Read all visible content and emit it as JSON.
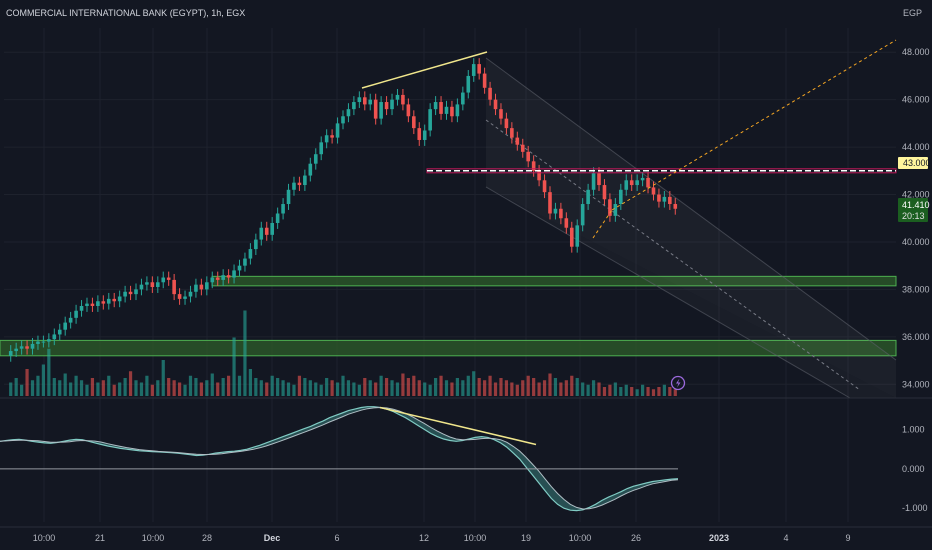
{
  "header": {
    "title": "COMMERCIAL INTERNATIONAL BANK (EGYPT), 1h, EGX",
    "currency": "EGP"
  },
  "colors": {
    "background": "#131722",
    "up": "#26a69a",
    "down": "#ef5350",
    "zone_fill": "#2e5e2a",
    "zone_border": "#4caf50",
    "trendline": "#f0e68c",
    "dashed_projection": "#f5a623",
    "price_badge": "#1b5e20",
    "level_badge_bg": "#fff59d",
    "grid": "#1e222d",
    "text": "#b2b5be"
  },
  "price_axis": {
    "ticks": [
      "48.000",
      "46.000",
      "44.000",
      "42.000",
      "40.000",
      "38.000",
      "36.000",
      "34.000"
    ],
    "current_price": "41.410",
    "countdown": "20:13",
    "marked_level": "43.000"
  },
  "oscillator_axis": {
    "ticks": [
      "1.000",
      "0.000",
      "-1.000"
    ]
  },
  "time_axis": {
    "labels": [
      "10:00",
      "21",
      "10:00",
      "28",
      "Dec",
      "6",
      "12",
      "10:00",
      "19",
      "10:00",
      "26",
      "2023",
      "4",
      "9"
    ]
  },
  "icons": {
    "flash": "lightning-icon"
  },
  "chart_data": {
    "type": "candlestick",
    "symbol": "COMMERCIAL INTERNATIONAL BANK (EGYPT)",
    "timeframe": "1h",
    "exchange": "EGX",
    "ylim": [
      33.8,
      48.6
    ],
    "grid": true,
    "closes": [
      35.4,
      35.5,
      35.6,
      35.5,
      35.7,
      35.8,
      35.8,
      35.9,
      36.1,
      36.3,
      36.6,
      36.8,
      37.1,
      37.3,
      37.4,
      37.3,
      37.5,
      37.4,
      37.6,
      37.5,
      37.7,
      37.9,
      37.8,
      38.0,
      38.2,
      38.3,
      38.1,
      38.3,
      38.5,
      38.4,
      37.8,
      37.6,
      37.7,
      37.9,
      38.2,
      38.0,
      38.3,
      38.5,
      38.4,
      38.6,
      38.5,
      38.8,
      39.0,
      39.3,
      39.7,
      40.1,
      40.6,
      40.3,
      40.8,
      41.2,
      41.6,
      42.2,
      42.5,
      42.4,
      42.8,
      43.3,
      43.7,
      44.2,
      44.5,
      44.4,
      45.0,
      45.3,
      45.6,
      45.9,
      46.1,
      45.8,
      46.0,
      45.2,
      45.9,
      45.6,
      46.0,
      46.2,
      45.8,
      45.3,
      44.8,
      44.3,
      44.7,
      45.6,
      45.9,
      45.4,
      45.7,
      45.3,
      45.8,
      46.3,
      47.0,
      47.5,
      47.1,
      46.5,
      46.0,
      45.6,
      45.2,
      44.8,
      44.4,
      44.1,
      43.8,
      43.4,
      43.0,
      42.6,
      42.1,
      41.2,
      41.4,
      41.0,
      40.6,
      39.8,
      40.7,
      41.6,
      42.2,
      42.9,
      42.4,
      41.8,
      41.1,
      41.6,
      42.2,
      42.6,
      42.4,
      42.6,
      42.7,
      42.3,
      42.0,
      41.7,
      41.9,
      41.6,
      41.4
    ],
    "volumes": [
      0.6,
      0.8,
      0.5,
      1.2,
      0.7,
      0.9,
      1.4,
      2.1,
      0.8,
      0.7,
      1.0,
      0.6,
      0.9,
      0.7,
      0.5,
      0.8,
      0.6,
      0.7,
      0.9,
      0.5,
      0.6,
      0.8,
      1.1,
      0.7,
      0.6,
      0.9,
      0.5,
      0.7,
      1.6,
      0.8,
      0.7,
      0.6,
      0.5,
      0.9,
      0.8,
      0.6,
      0.7,
      1.0,
      0.6,
      0.8,
      0.9,
      2.6,
      0.9,
      3.8,
      1.2,
      0.8,
      0.7,
      0.6,
      0.9,
      0.8,
      0.7,
      0.6,
      0.5,
      0.9,
      0.8,
      0.7,
      0.6,
      0.5,
      0.8,
      0.7,
      0.6,
      0.9,
      0.7,
      0.6,
      0.5,
      0.8,
      0.7,
      0.6,
      0.9,
      0.8,
      0.7,
      0.6,
      1.0,
      0.8,
      0.9,
      0.7,
      0.6,
      0.5,
      0.8,
      0.9,
      0.7,
      0.6,
      0.8,
      0.7,
      0.9,
      1.1,
      0.8,
      0.7,
      0.9,
      0.6,
      0.8,
      0.7,
      0.6,
      0.5,
      0.7,
      0.9,
      0.8,
      0.6,
      0.7,
      1.0,
      0.8,
      0.6,
      0.7,
      0.9,
      0.8,
      0.6,
      0.5,
      0.7,
      0.6,
      0.4,
      0.5,
      0.6,
      0.4,
      0.5,
      0.4,
      0.3,
      0.5,
      0.4,
      0.3,
      0.4,
      0.5,
      0.4,
      0.3
    ],
    "oscillator": [
      0.7,
      0.72,
      0.74,
      0.75,
      0.73,
      0.7,
      0.68,
      0.66,
      0.65,
      0.67,
      0.7,
      0.73,
      0.75,
      0.74,
      0.7,
      0.66,
      0.62,
      0.58,
      0.55,
      0.52,
      0.5,
      0.48,
      0.46,
      0.45,
      0.44,
      0.43,
      0.42,
      0.41,
      0.4,
      0.38,
      0.36,
      0.34,
      0.35,
      0.37,
      0.4,
      0.42,
      0.44,
      0.45,
      0.47,
      0.5,
      0.55,
      0.6,
      0.66,
      0.72,
      0.78,
      0.84,
      0.9,
      0.96,
      1.02,
      1.08,
      1.15,
      1.22,
      1.3,
      1.36,
      1.42,
      1.48,
      1.52,
      1.56,
      1.58,
      1.58,
      1.56,
      1.52,
      1.46,
      1.38,
      1.3,
      1.2,
      1.1,
      1.0,
      0.9,
      0.82,
      0.76,
      0.72,
      0.7,
      0.72,
      0.76,
      0.8,
      0.82,
      0.8,
      0.74,
      0.66,
      0.55,
      0.4,
      0.25,
      0.05,
      -0.15,
      -0.35,
      -0.55,
      -0.75,
      -0.9,
      -1.0,
      -1.05,
      -1.06,
      -1.04,
      -0.98,
      -0.9,
      -0.8,
      -0.72,
      -0.65,
      -0.58,
      -0.5,
      -0.44,
      -0.4,
      -0.36,
      -0.32,
      -0.3,
      -0.28,
      -0.26,
      -0.25
    ],
    "zones": [
      {
        "low": 38.15,
        "high": 38.55
      },
      {
        "low": 35.2,
        "high": 35.85
      }
    ],
    "horizontal_levels": [
      43.0
    ],
    "price_labels": [
      "43.000",
      "41.410"
    ]
  }
}
